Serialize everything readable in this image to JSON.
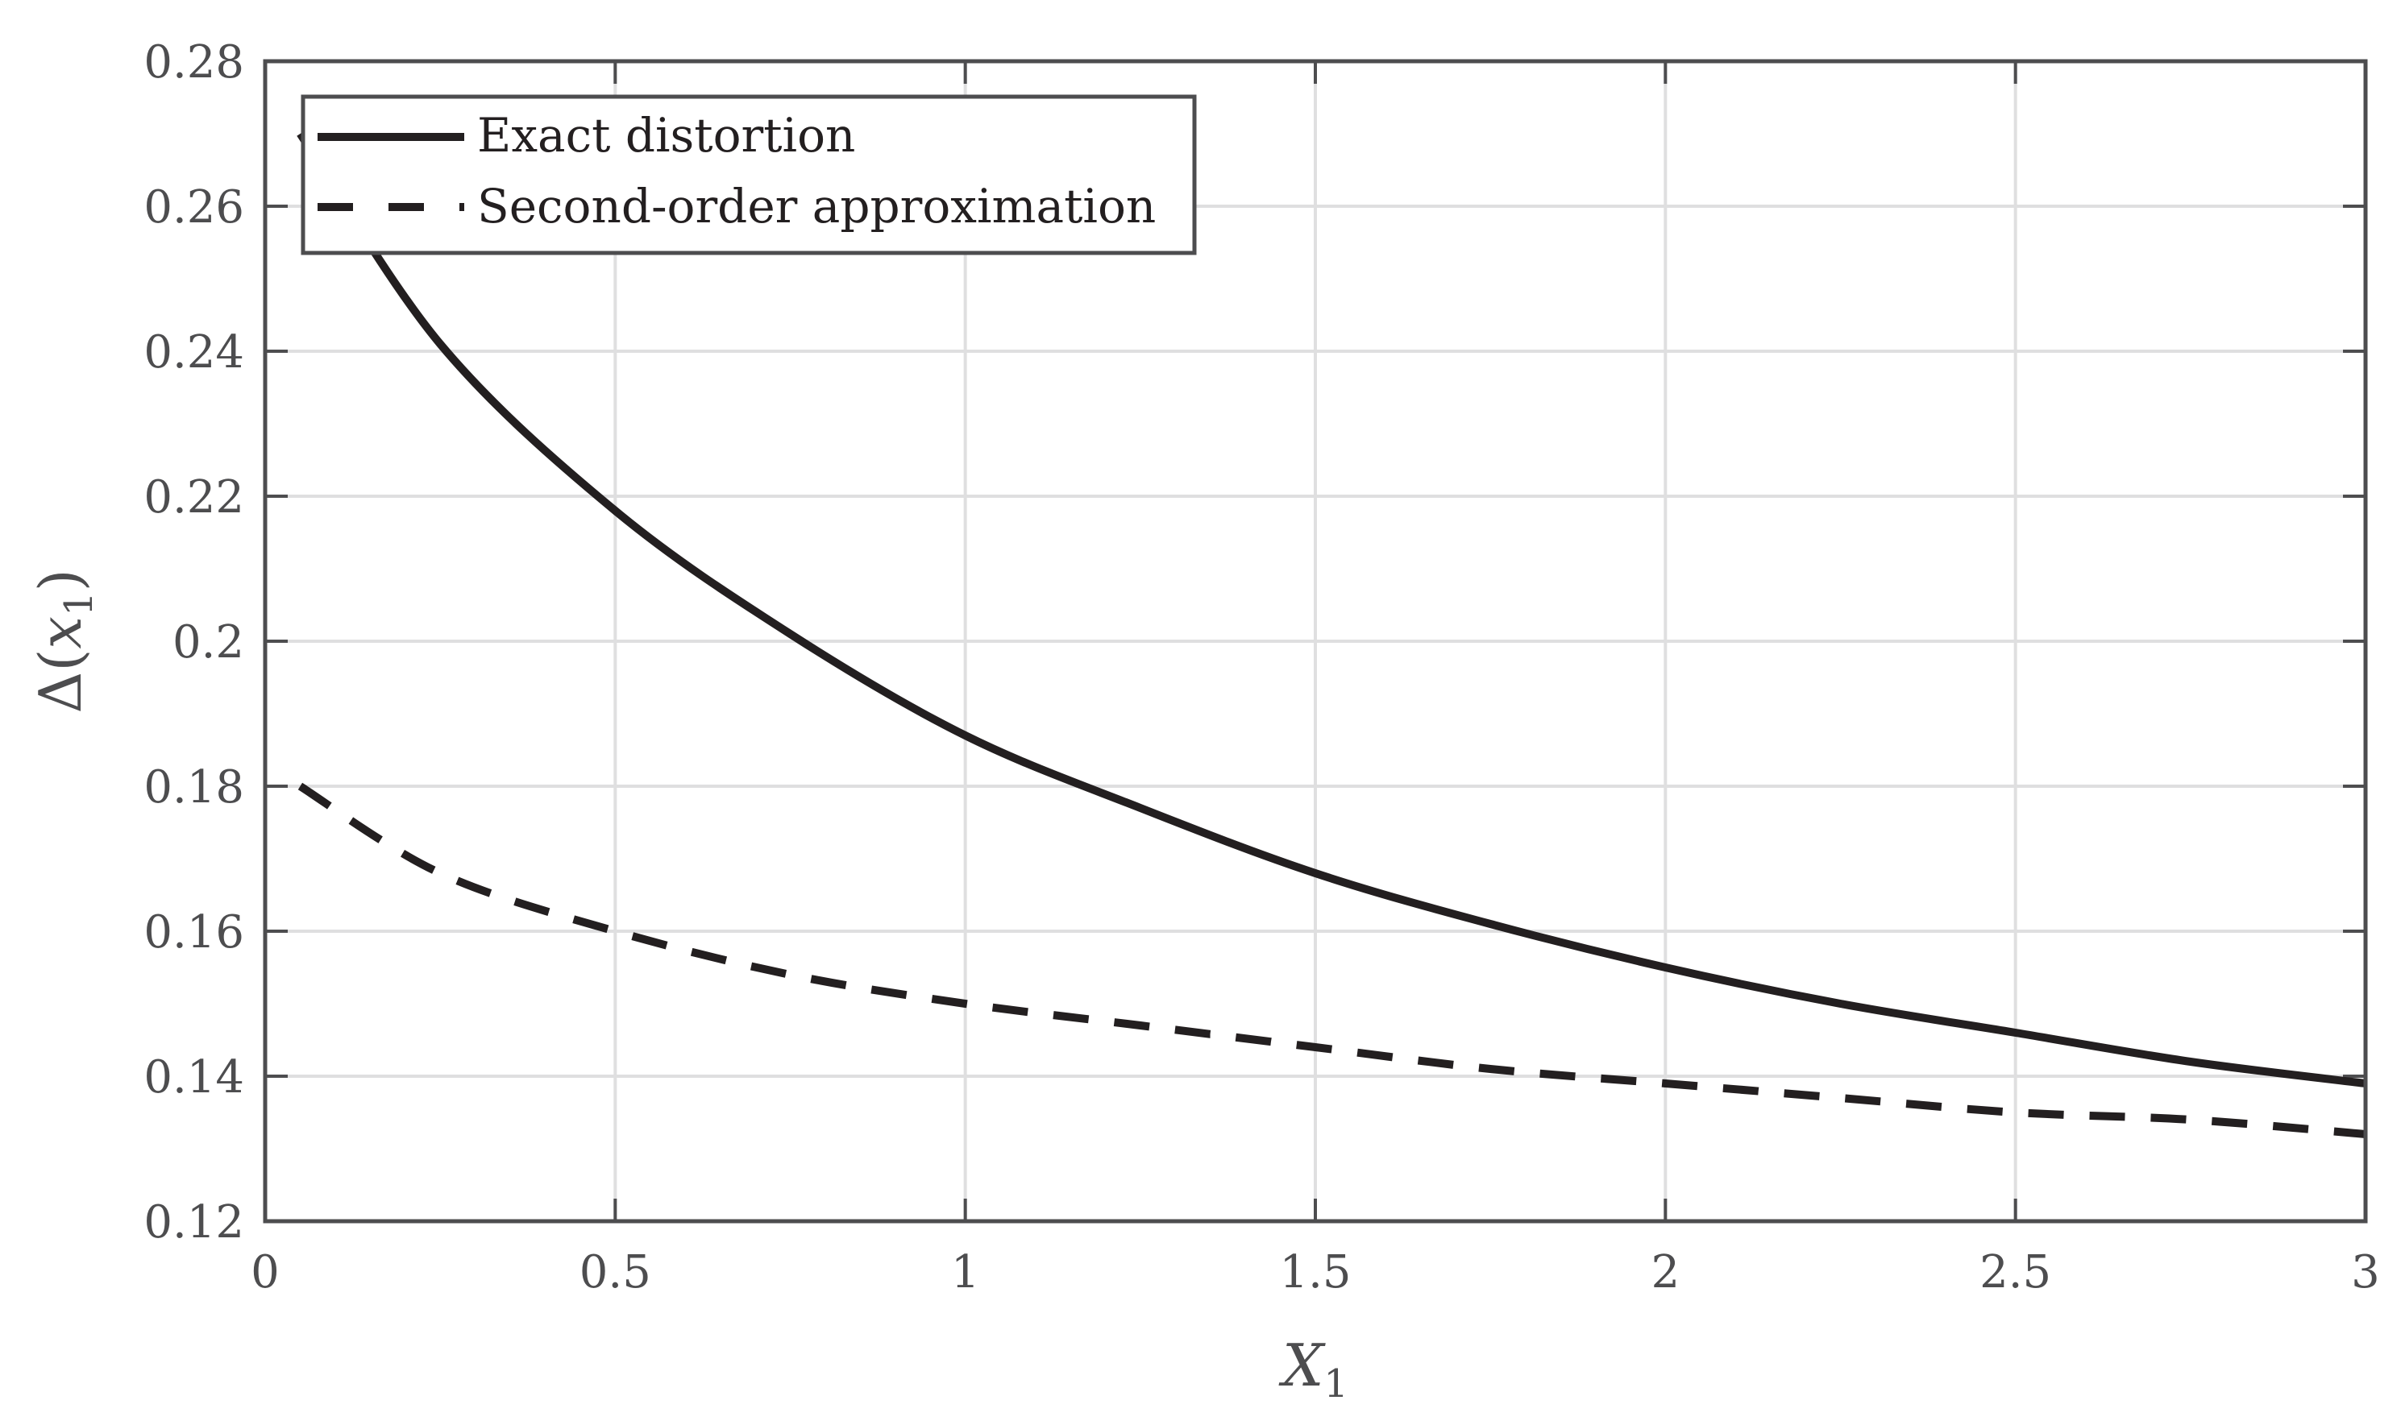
{
  "chart_data": {
    "type": "line",
    "title": "",
    "xlabel": "X_1",
    "ylabel": "Δ(x_1)",
    "xlim": [
      0,
      3
    ],
    "ylim": [
      0.12,
      0.28
    ],
    "grid": true,
    "legend_position": "upper left",
    "x_ticks": [
      "0",
      "0.5",
      "1",
      "1.5",
      "2",
      "2.5",
      "3"
    ],
    "y_ticks": [
      "0.12",
      "0.14",
      "0.16",
      "0.18",
      "0.2",
      "0.22",
      "0.24",
      "0.26",
      "0.28"
    ],
    "x": [
      0.05,
      0.25,
      0.5,
      0.75,
      1.0,
      1.25,
      1.5,
      1.75,
      2.0,
      2.25,
      2.5,
      2.75,
      3.0
    ],
    "series": [
      {
        "name": "Exact distortion",
        "style": "solid",
        "color": "#231f20",
        "values": [
          0.27,
          0.241,
          0.218,
          0.201,
          0.187,
          0.177,
          0.168,
          0.161,
          0.155,
          0.15,
          0.146,
          0.142,
          0.139
        ]
      },
      {
        "name": "Second-order approximation",
        "style": "dashed",
        "color": "#231f20",
        "values": [
          0.18,
          0.168,
          0.16,
          0.154,
          0.15,
          0.147,
          0.144,
          0.141,
          0.139,
          0.137,
          0.135,
          0.134,
          0.132
        ]
      }
    ]
  },
  "labels": {
    "xlabel_main": "X",
    "xlabel_sub": "1",
    "ylabel_delta": "Δ(",
    "ylabel_var": "x",
    "ylabel_sub": "1",
    "ylabel_close": ")"
  },
  "legend": {
    "items": [
      {
        "label": "Exact distortion"
      },
      {
        "label": "Second-order approximation"
      }
    ]
  }
}
